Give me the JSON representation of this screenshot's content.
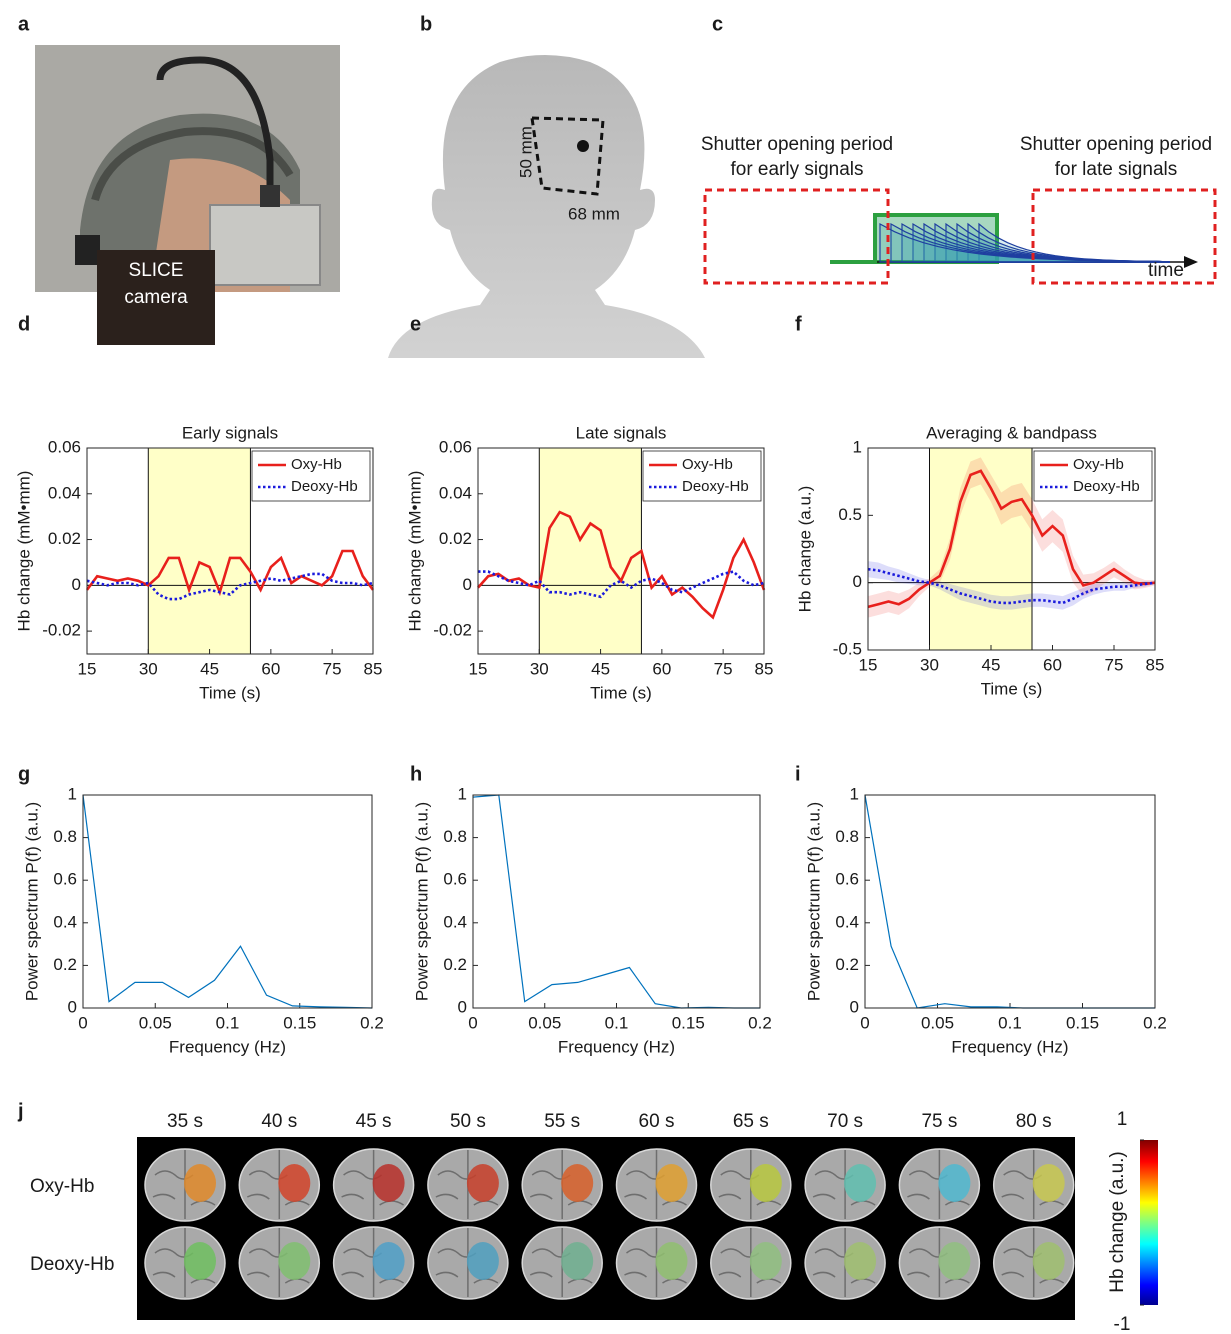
{
  "panel_labels": [
    "a",
    "b",
    "c",
    "d",
    "e",
    "f",
    "g",
    "h",
    "i",
    "j"
  ],
  "photo": {
    "label": [
      "SLICE",
      "camera"
    ]
  },
  "head": {
    "height_label": "50 mm",
    "width_label": "68 mm"
  },
  "shutter": {
    "early": [
      "Shutter opening period",
      "for early signals"
    ],
    "late": [
      "Shutter opening period",
      "for late signals"
    ],
    "axis": "time"
  },
  "chart_data": [
    {
      "type": "line",
      "title": "Early signals",
      "xlabel": "Time (s)",
      "ylabel": "Hb change (mM•mm)",
      "x": [
        15,
        17.5,
        20,
        22.5,
        25,
        27.5,
        30,
        32.5,
        35,
        37.5,
        40,
        42.5,
        45,
        47.5,
        50,
        52.5,
        55,
        57.5,
        60,
        62.5,
        65,
        67.5,
        70,
        72.5,
        75,
        77.5,
        80,
        82.5,
        85
      ],
      "series": [
        {
          "name": "Oxy-Hb",
          "color": "#e8201c",
          "style": "solid",
          "values": [
            -0.002,
            0.004,
            0.003,
            0.002,
            0.003,
            0.002,
            0,
            0.004,
            0.012,
            0.012,
            -0.002,
            0.01,
            0.008,
            -0.003,
            0.012,
            0.012,
            0.006,
            -0.002,
            0.008,
            0.012,
            0.001,
            0.004,
            0.002,
            0,
            0.004,
            0.015,
            0.015,
            0.004,
            -0.002
          ]
        },
        {
          "name": "Deoxy-Hb",
          "color": "#1a1adc",
          "style": "dotted",
          "values": [
            0.002,
            0.001,
            0,
            0.001,
            0.001,
            0,
            0.001,
            -0.004,
            -0.006,
            -0.006,
            -0.004,
            -0.003,
            -0.002,
            -0.003,
            -0.004,
            0,
            0.001,
            0.002,
            0.003,
            0.002,
            0.003,
            0.004,
            0.005,
            0.005,
            0.002,
            0.001,
            0.001,
            0,
            0.001
          ]
        }
      ],
      "shade": [
        30,
        55
      ],
      "shade_color": "#ffffc8",
      "zero_line": true,
      "legend": "top-right",
      "xlim": [
        15,
        85
      ],
      "xticks": [
        15,
        30,
        45,
        60,
        75,
        85
      ],
      "ylim": [
        -0.03,
        0.06
      ],
      "yticks": [
        -0.02,
        0,
        0.02,
        0.04,
        0.06
      ]
    },
    {
      "type": "line",
      "title": "Late signals",
      "xlabel": "Time (s)",
      "ylabel": "Hb change (mM•mm)",
      "x": [
        15,
        17.5,
        20,
        22.5,
        25,
        27.5,
        30,
        32.5,
        35,
        37.5,
        40,
        42.5,
        45,
        47.5,
        50,
        52.5,
        55,
        57.5,
        60,
        62.5,
        65,
        67.5,
        70,
        72.5,
        75,
        77.5,
        80,
        82.5,
        85
      ],
      "series": [
        {
          "name": "Oxy-Hb",
          "color": "#e8201c",
          "style": "solid",
          "values": [
            -0.001,
            0.004,
            0.005,
            0.002,
            0.003,
            0,
            -0.001,
            0.025,
            0.032,
            0.03,
            0.02,
            0.027,
            0.024,
            0.008,
            0.002,
            0.012,
            0.015,
            -0.001,
            0.004,
            -0.004,
            -0.001,
            -0.005,
            -0.01,
            -0.014,
            -0.002,
            0.012,
            0.02,
            0.01,
            -0.002
          ]
        },
        {
          "name": "Deoxy-Hb",
          "color": "#1a1adc",
          "style": "dotted",
          "values": [
            0.006,
            0.006,
            0.004,
            0.002,
            0.001,
            0,
            0.002,
            -0.003,
            -0.003,
            -0.004,
            -0.003,
            -0.004,
            -0.005,
            0,
            0.002,
            -0.001,
            0.002,
            0.003,
            0.001,
            -0.002,
            -0.003,
            -0.001,
            0.001,
            0.003,
            0.005,
            0.006,
            0.002,
            0,
            0.001
          ]
        }
      ],
      "shade": [
        30,
        55
      ],
      "shade_color": "#ffffc8",
      "zero_line": true,
      "legend": "top-right",
      "xlim": [
        15,
        85
      ],
      "xticks": [
        15,
        30,
        45,
        60,
        75,
        85
      ],
      "ylim": [
        -0.03,
        0.06
      ],
      "yticks": [
        -0.02,
        0,
        0.02,
        0.04,
        0.06
      ]
    },
    {
      "type": "line",
      "title": "Averaging & bandpass",
      "xlabel": "Time (s)",
      "ylabel": "Hb change (a.u.)",
      "x": [
        15,
        17.5,
        20,
        22.5,
        25,
        27.5,
        30,
        32.5,
        35,
        37.5,
        40,
        42.5,
        45,
        47.5,
        50,
        52.5,
        55,
        57.5,
        60,
        62.5,
        65,
        67.5,
        70,
        72.5,
        75,
        77.5,
        80,
        82.5,
        85
      ],
      "series": [
        {
          "name": "Oxy-Hb",
          "color": "#e8201c",
          "style": "solid",
          "values": [
            -0.18,
            -0.16,
            -0.14,
            -0.16,
            -0.12,
            -0.05,
            0,
            0.05,
            0.25,
            0.6,
            0.8,
            0.83,
            0.7,
            0.55,
            0.6,
            0.62,
            0.5,
            0.35,
            0.42,
            0.35,
            0.1,
            -0.02,
            0,
            0.05,
            0.1,
            0.05,
            0,
            -0.01,
            0
          ],
          "errors": [
            0.08,
            0.08,
            0.08,
            0.08,
            0.07,
            0.05,
            0.03,
            0.05,
            0.08,
            0.1,
            0.1,
            0.1,
            0.1,
            0.12,
            0.12,
            0.12,
            0.12,
            0.12,
            0.12,
            0.12,
            0.1,
            0.08,
            0.07,
            0.06,
            0.06,
            0.05,
            0.05,
            0.03,
            0.02
          ]
        },
        {
          "name": "Deoxy-Hb",
          "color": "#1a1adc",
          "style": "dotted",
          "values": [
            0.1,
            0.09,
            0.07,
            0.05,
            0.03,
            0.01,
            0,
            -0.02,
            -0.05,
            -0.08,
            -0.1,
            -0.12,
            -0.14,
            -0.15,
            -0.15,
            -0.14,
            -0.13,
            -0.13,
            -0.14,
            -0.15,
            -0.12,
            -0.08,
            -0.05,
            -0.04,
            -0.03,
            -0.03,
            -0.02,
            -0.01,
            0
          ],
          "errors": [
            0.06,
            0.06,
            0.05,
            0.05,
            0.04,
            0.03,
            0.02,
            0.03,
            0.04,
            0.05,
            0.05,
            0.05,
            0.05,
            0.05,
            0.05,
            0.05,
            0.05,
            0.05,
            0.05,
            0.05,
            0.05,
            0.04,
            0.04,
            0.03,
            0.03,
            0.03,
            0.02,
            0.02,
            0.01
          ]
        }
      ],
      "shade": [
        30,
        55
      ],
      "shade_color": "#ffffc8",
      "zero_line": true,
      "legend": "top-right",
      "xlim": [
        15,
        85
      ],
      "xticks": [
        15,
        30,
        45,
        60,
        75,
        85
      ],
      "ylim": [
        -0.5,
        1
      ],
      "yticks": [
        -0.5,
        0,
        0.5,
        1
      ]
    },
    {
      "type": "line",
      "xlabel": "Frequency (Hz)",
      "ylabel": "Power spectrum P(f) (a.u.)",
      "x": [
        0,
        0.018,
        0.036,
        0.055,
        0.073,
        0.091,
        0.109,
        0.127,
        0.145,
        0.164,
        0.182,
        0.2
      ],
      "series": [
        {
          "color": "#0072bd",
          "style": "solid",
          "values": [
            1,
            0.03,
            0.12,
            0.12,
            0.05,
            0.13,
            0.29,
            0.06,
            0.01,
            0.005,
            0.003,
            0
          ]
        }
      ],
      "xlim": [
        0,
        0.2
      ],
      "xticks": [
        0,
        0.05,
        0.1,
        0.15,
        0.2
      ],
      "ylim": [
        0,
        1
      ],
      "yticks": [
        0,
        0.2,
        0.4,
        0.6,
        0.8,
        1
      ]
    },
    {
      "type": "line",
      "xlabel": "Frequency (Hz)",
      "ylabel": "Power spectrum P(f) (a.u.)",
      "x": [
        0,
        0.018,
        0.036,
        0.055,
        0.073,
        0.091,
        0.109,
        0.127,
        0.145,
        0.164,
        0.182,
        0.2
      ],
      "series": [
        {
          "color": "#0072bd",
          "style": "solid",
          "values": [
            0.99,
            1,
            0.03,
            0.11,
            0.12,
            0.155,
            0.19,
            0.02,
            0,
            0.003,
            0,
            0
          ]
        }
      ],
      "xlim": [
        0,
        0.2
      ],
      "xticks": [
        0,
        0.05,
        0.1,
        0.15,
        0.2
      ],
      "ylim": [
        0,
        1
      ],
      "yticks": [
        0,
        0.2,
        0.4,
        0.6,
        0.8,
        1
      ]
    },
    {
      "type": "line",
      "xlabel": "Frequency (Hz)",
      "ylabel": "Power spectrum P(f) (a.u.)",
      "x": [
        0,
        0.018,
        0.036,
        0.055,
        0.073,
        0.091,
        0.109,
        0.127,
        0.145,
        0.164,
        0.182,
        0.2
      ],
      "series": [
        {
          "color": "#0072bd",
          "style": "solid",
          "values": [
            1,
            0.29,
            0,
            0.02,
            0.005,
            0.005,
            0,
            0,
            0,
            0,
            0,
            0
          ]
        }
      ],
      "xlim": [
        0,
        0.2
      ],
      "xticks": [
        0,
        0.05,
        0.1,
        0.15,
        0.2
      ],
      "ylim": [
        0,
        1
      ],
      "yticks": [
        0,
        0.2,
        0.4,
        0.6,
        0.8,
        1
      ]
    }
  ],
  "maps": {
    "times": [
      "35 s",
      "40 s",
      "45 s",
      "50 s",
      "55 s",
      "60 s",
      "65 s",
      "70 s",
      "75 s",
      "80 s"
    ],
    "rows": [
      "Oxy-Hb",
      "Deoxy-Hb"
    ],
    "oxy_colors": [
      "#e08a2a",
      "#d2442a",
      "#b8302a",
      "#c8402a",
      "#d8602a",
      "#e0a030",
      "#b8c840",
      "#60c0b0",
      "#50b8d0",
      "#c8c850"
    ],
    "deoxy_colors": [
      "#70c060",
      "#80c070",
      "#50a0c8",
      "#50a0c0",
      "#70b090",
      "#90c070",
      "#90c080",
      "#a0c070",
      "#90c080",
      "#a0c070"
    ],
    "colorbar": {
      "label": "Hb change (a.u.)",
      "lim": [
        -1,
        1
      ],
      "ticks": [
        -1,
        1
      ]
    }
  }
}
